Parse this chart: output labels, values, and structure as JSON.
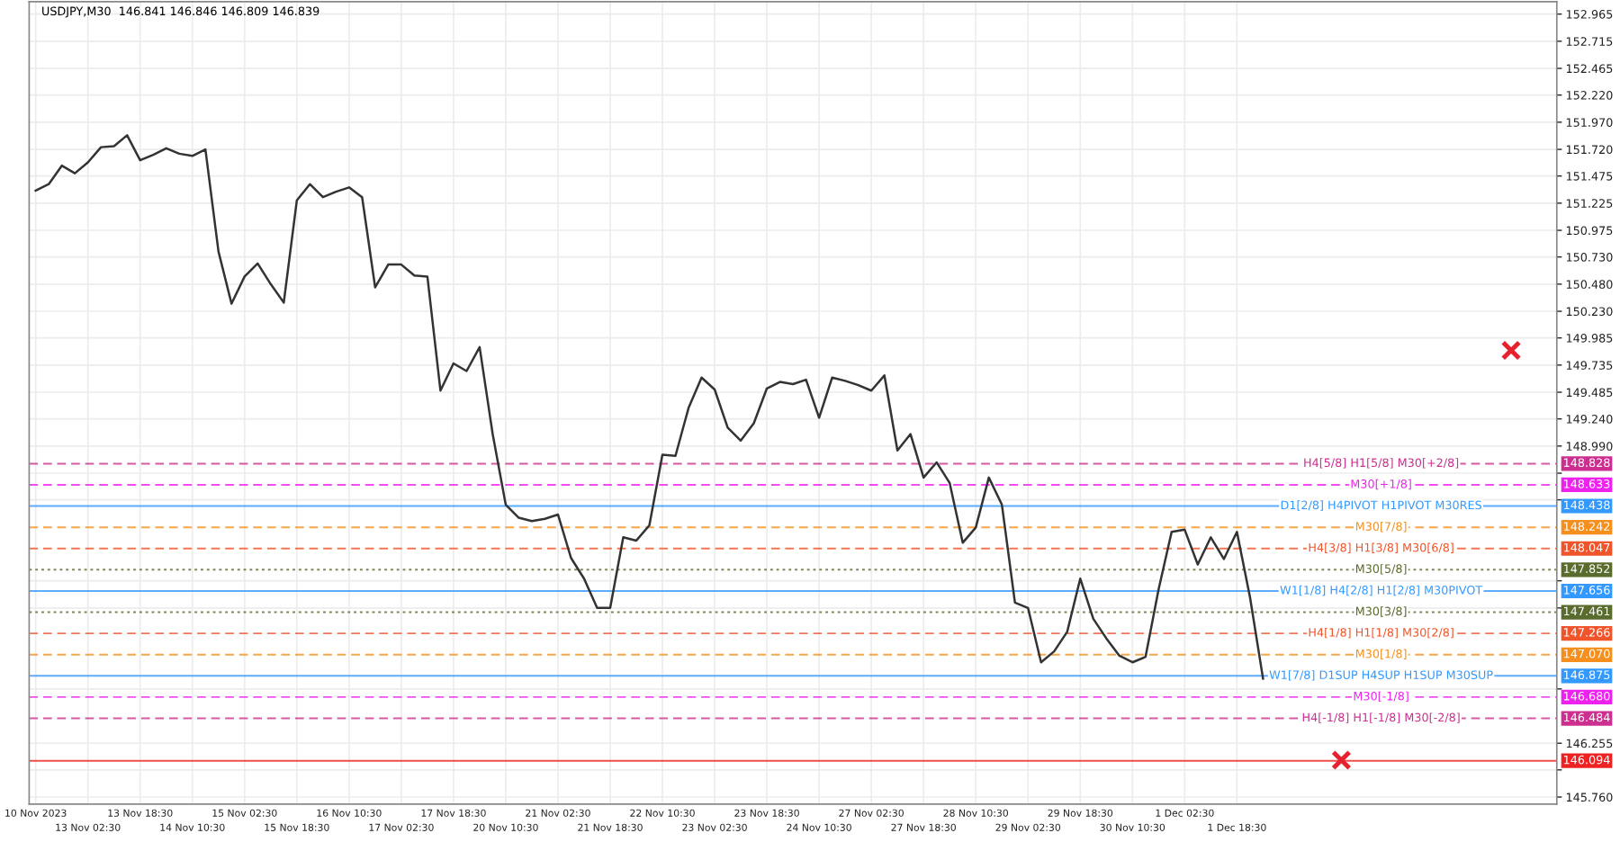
{
  "chart_data": {
    "type": "line",
    "title": "USDJPY,M30  146.841 146.846 146.809 146.839",
    "ylim": [
      145.695,
      153.079
    ],
    "grid": true,
    "marker": "none",
    "line_style": "solid",
    "categories": [
      "10 Nov 2023",
      null,
      null,
      null,
      "13 Nov 02:30",
      null,
      null,
      null,
      "13 Nov 18:30",
      null,
      null,
      null,
      "14 Nov 10:30",
      null,
      null,
      null,
      "15 Nov 02:30",
      null,
      null,
      null,
      "15 Nov 18:30",
      null,
      null,
      null,
      "16 Nov 10:30",
      null,
      null,
      null,
      "17 Nov 02:30",
      null,
      null,
      null,
      "17 Nov 18:30",
      null,
      null,
      null,
      "20 Nov 10:30",
      null,
      null,
      null,
      "21 Nov 02:30",
      null,
      null,
      null,
      "21 Nov 18:30",
      null,
      null,
      null,
      "22 Nov 10:30",
      null,
      null,
      null,
      "23 Nov 02:30",
      null,
      null,
      null,
      "23 Nov 18:30",
      null,
      null,
      null,
      "24 Nov 10:30",
      null,
      null,
      null,
      "27 Nov 02:30",
      null,
      null,
      null,
      "27 Nov 18:30",
      null,
      null,
      null,
      "28 Nov 10:30",
      null,
      null,
      null,
      "29 Nov 02:30",
      null,
      null,
      null,
      "29 Nov 18:30",
      null,
      null,
      null,
      "30 Nov 10:30",
      null,
      null,
      null,
      "1 Dec 02:30",
      null,
      null,
      null,
      "1 Dec 18:30",
      null,
      null,
      null,
      null,
      null,
      null,
      null,
      null,
      null,
      null,
      null,
      null,
      null,
      null,
      null,
      null,
      null,
      null,
      null,
      null,
      null,
      null,
      null,
      null
    ],
    "yticks": [
      152.965,
      152.715,
      152.465,
      {
        "value": 152.22,
        "label": "152.220"
      },
      {
        "value": 151.97,
        "label": "151.970"
      },
      {
        "value": 151.72,
        "label": "151.720"
      },
      151.475,
      151.225,
      150.975,
      {
        "value": 150.73,
        "label": "150.730"
      },
      {
        "value": 150.48,
        "label": "150.480"
      },
      {
        "value": 150.23,
        "label": "150.230"
      },
      149.985,
      149.735,
      149.485,
      {
        "value": 149.24,
        "label": "149.240"
      },
      {
        "value": 148.99,
        "label": "148.990"
      },
      {
        "value": 148.74,
        "label": null
      },
      {
        "value": 148.495,
        "label": null
      },
      {
        "value": 147.75,
        "label": null
      },
      {
        "value": 147.5,
        "label": null
      },
      {
        "value": 146.755,
        "label": null
      },
      146.255,
      {
        "value": 146.01,
        "label": null
      },
      {
        "value": 145.76,
        "label": "145.760"
      }
    ],
    "series": [
      {
        "color": "#333333",
        "values": [
          151.34,
          151.4,
          151.57,
          151.5,
          151.6,
          151.74,
          151.75,
          151.85,
          151.62,
          151.67,
          151.73,
          151.68,
          151.66,
          151.72,
          150.78,
          150.3,
          150.55,
          150.67,
          150.48,
          150.31,
          151.25,
          151.4,
          151.28,
          151.33,
          151.37,
          151.28,
          150.45,
          150.66,
          150.66,
          150.56,
          150.55,
          149.5,
          149.75,
          149.68,
          149.9,
          149.1,
          148.45,
          148.33,
          148.3,
          148.32,
          148.36,
          147.96,
          147.77,
          147.5,
          147.5,
          148.15,
          148.12,
          148.26,
          148.91,
          148.9,
          149.34,
          149.62,
          149.51,
          149.16,
          149.04,
          149.2,
          149.52,
          149.58,
          149.56,
          149.6,
          149.25,
          149.62,
          149.59,
          149.55,
          149.5,
          149.64,
          148.95,
          149.1,
          148.7,
          148.84,
          148.65,
          148.1,
          148.24,
          148.7,
          148.45,
          147.55,
          147.5,
          147.0,
          147.1,
          147.28,
          147.77,
          147.4,
          147.22,
          147.06,
          147.0,
          147.05,
          147.67,
          148.2,
          148.22,
          147.9,
          148.15,
          147.95,
          148.2,
          147.6,
          146.85,
          null,
          null,
          null,
          null,
          null,
          null,
          null,
          null,
          null,
          null,
          null,
          null,
          null,
          null,
          null,
          null,
          null,
          null,
          null,
          null,
          null,
          null
        ]
      },
      {
        "type": "scatter",
        "color": "#e8212f",
        "marker": "cross",
        "values": [
          null,
          null,
          null,
          null,
          null,
          null,
          null,
          null,
          null,
          null,
          null,
          null,
          null,
          null,
          null,
          null,
          null,
          null,
          null,
          null,
          null,
          null,
          null,
          null,
          null,
          null,
          null,
          null,
          null,
          null,
          null,
          null,
          null,
          null,
          null,
          null,
          null,
          null,
          null,
          null,
          null,
          null,
          null,
          null,
          null,
          null,
          null,
          null,
          null,
          null,
          null,
          null,
          null,
          null,
          null,
          null,
          null,
          null,
          null,
          null,
          null,
          null,
          null,
          null,
          null,
          null,
          null,
          null,
          null,
          null,
          null,
          null,
          null,
          null,
          null,
          null,
          null,
          null,
          null,
          null,
          null,
          null,
          null,
          null,
          null,
          null,
          null,
          null,
          null,
          null,
          null,
          null,
          null,
          null,
          null,
          null,
          null,
          null,
          null,
          null,
          146.1,
          null,
          null,
          null,
          null,
          null,
          null,
          null,
          null,
          null,
          null,
          null,
          null,
          149.87,
          null,
          null,
          null
        ]
      }
    ],
    "ref_lines": [
      {
        "axis": "y",
        "value": 148.828,
        "label": "H4[5/8] H1[5/8] M30[+2/8]",
        "color": "#cc2f8f",
        "line_style": "dashed"
      },
      {
        "axis": "y",
        "value": 148.633,
        "label": "M30[+1/8]",
        "color": "#ee22ee",
        "line_style": "dashed"
      },
      {
        "axis": "y",
        "value": 148.438,
        "label": "D1[2/8] H4PIVOT H1PIVOT M30RES",
        "color": "#3399ff",
        "line_style": "solid"
      },
      {
        "axis": "y",
        "value": 148.242,
        "label": "M30[7/8]",
        "color": "#f5901e",
        "line_style": "dashed"
      },
      {
        "axis": "y",
        "value": 148.047,
        "label": "H4[3/8] H1[3/8] M30[6/8]",
        "color": "#f0542a",
        "line_style": "dashed"
      },
      {
        "axis": "y",
        "value": 147.852,
        "label": "M30[5/8]",
        "color": "#5a6b2e",
        "line_style": "dotted"
      },
      {
        "axis": "y",
        "value": 147.656,
        "label": "W1[1/8] H4[2/8] H1[2/8] M30PIVOT",
        "color": "#3399ff",
        "line_style": "solid"
      },
      {
        "axis": "y",
        "value": 147.461,
        "label": "M30[3/8]",
        "color": "#5a6b2e",
        "line_style": "dotted"
      },
      {
        "axis": "y",
        "value": 147.266,
        "label": "H4[1/8] H1[1/8] M30[2/8]",
        "color": "#f0542a",
        "line_style": "dashed"
      },
      {
        "axis": "y",
        "value": 147.07,
        "label": "M30[1/8]",
        "color": "#f5901e",
        "line_style": "dashed"
      },
      {
        "axis": "y",
        "value": 146.875,
        "label": "W1[7/8] D1SUP H4SUP H1SUP M30SUP",
        "color": "#3399ff",
        "line_style": "solid"
      },
      {
        "axis": "y",
        "value": 146.68,
        "label": "M30[-1/8]",
        "color": "#ee22ee",
        "line_style": "dashed"
      },
      {
        "axis": "y",
        "value": 146.484,
        "label": "H4[-1/8] H1[-1/8] M30[-2/8]",
        "color": "#cc2f8f",
        "line_style": "dashed"
      },
      {
        "axis": "y",
        "value": 146.094,
        "label": null,
        "color": "#ee2222",
        "line_style": "solid"
      }
    ],
    "annotations": [
      "148.828",
      "148.633",
      "148.438",
      "148.242",
      "148.047",
      "147.852",
      "147.656",
      "147.461",
      "147.266",
      "147.070",
      "146.875",
      "146.680",
      "146.484",
      "146.094"
    ]
  }
}
